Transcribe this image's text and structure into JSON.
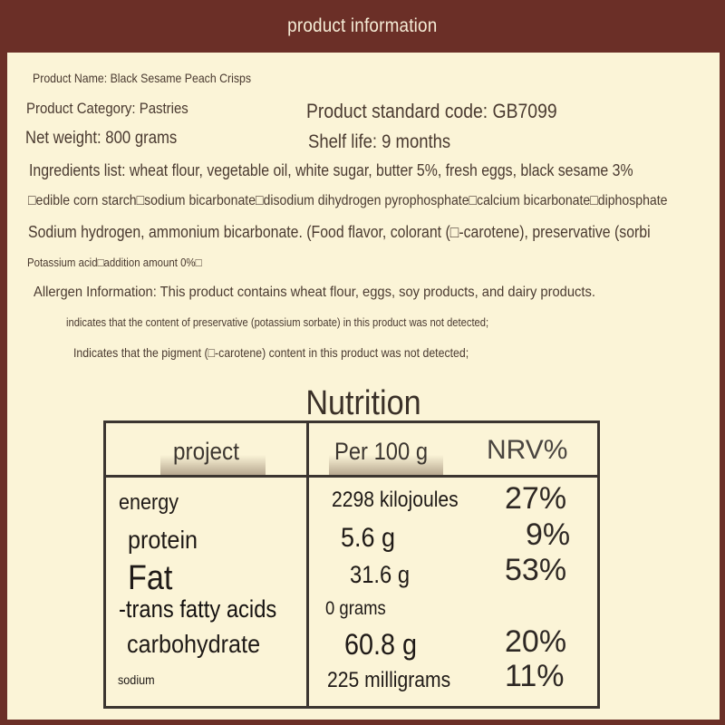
{
  "header": {
    "title": "product information"
  },
  "info": {
    "product_name": "Product Name: Black Sesame Peach Crisps",
    "category": "Product Category: Pastries",
    "standard_code": "Product standard code: GB7099",
    "net_weight": "Net weight: 800 grams",
    "shelf_life": "Shelf life: 9 months",
    "ingredients_1": "Ingredients list: wheat flour, vegetable oil, white sugar, butter 5%, fresh eggs, black sesame 3%",
    "ingredients_2": "□edible corn starch□sodium bicarbonate□disodium dihydrogen pyrophosphate□calcium bicarbonate□diphosphate",
    "ingredients_3": "Sodium hydrogen, ammonium bicarbonate. (Food flavor, colorant (□-carotene), preservative (sorbi",
    "ingredients_4": "Potassium acid□addition amount 0%□",
    "allergen": "Allergen Information: This product contains wheat flour, eggs, soy products, and dairy products.",
    "note_1": "indicates that the content of preservative (potassium sorbate) in this product was not detected;",
    "note_2": "Indicates that the pigment (□-carotene) content in this product was not detected;"
  },
  "nutrition": {
    "title": "Nutrition",
    "headers": {
      "item": "project",
      "per100": "Per 100 g",
      "nrv": "NRV%"
    },
    "rows": [
      {
        "name": "energy",
        "amount": "2298 kilojoules",
        "nrv": "27%"
      },
      {
        "name": "protein",
        "amount": "5.6 g",
        "nrv": "9%"
      },
      {
        "name": "Fat",
        "amount": "31.6 g",
        "nrv": "53%"
      },
      {
        "name": "-trans fatty acids",
        "amount": "0 grams",
        "nrv": ""
      },
      {
        "name": "carbohydrate",
        "amount": "60.8 g",
        "nrv": "20%"
      },
      {
        "name": "sodium",
        "amount": "225 milligrams",
        "nrv": "11%"
      }
    ]
  }
}
